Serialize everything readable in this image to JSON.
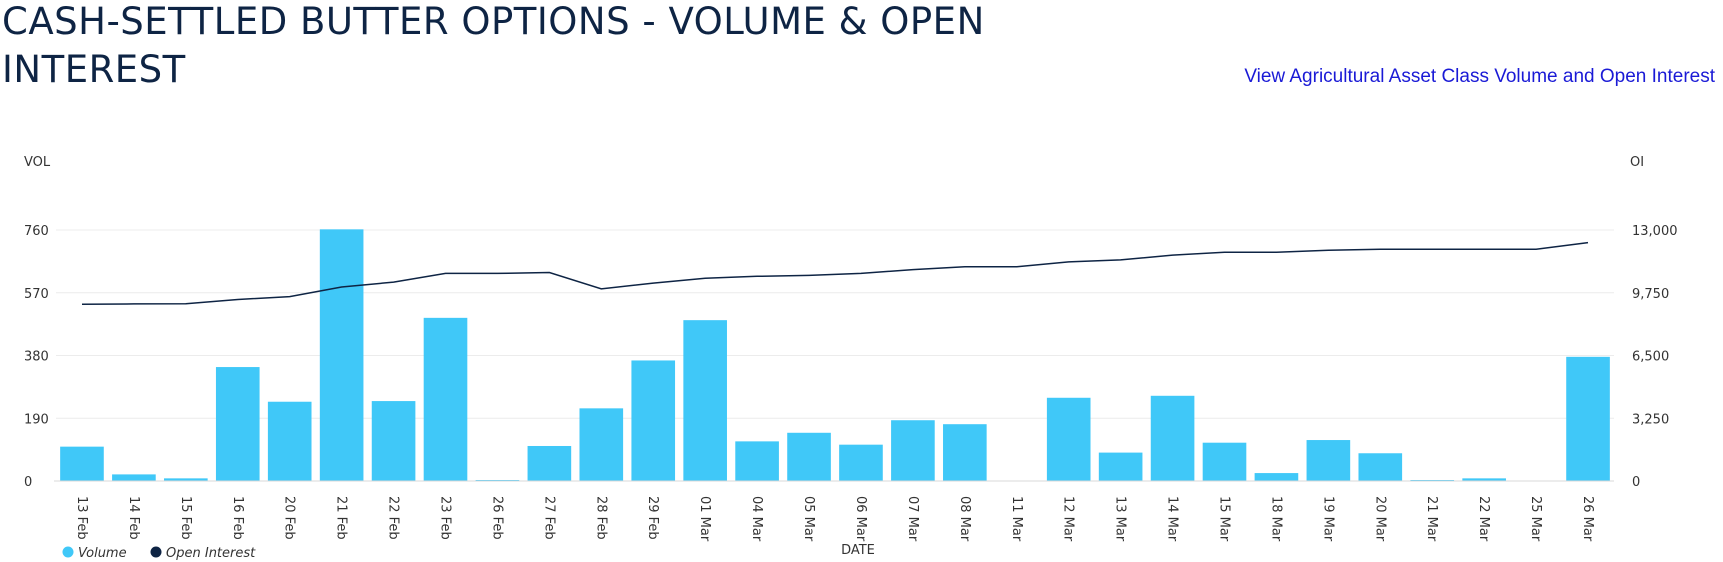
{
  "header": {
    "title": "CASH-SETTLED BUTTER OPTIONS - VOLUME & OPEN INTEREST",
    "link_text": "View Agricultural Asset Class Volume and Open Interest"
  },
  "colors": {
    "volume_bar": "#40c8f8",
    "oi_line": "#0e2444",
    "grid": "#ececec",
    "link": "#1a1ad6",
    "title": "#0e2444"
  },
  "chart_data": {
    "type": "bar",
    "title": "",
    "xlabel": "DATE",
    "ylabel": "VOL",
    "y2label": "OI",
    "categories": [
      "13 Feb",
      "14 Feb",
      "15 Feb",
      "16 Feb",
      "20 Feb",
      "21 Feb",
      "22 Feb",
      "23 Feb",
      "26 Feb",
      "27 Feb",
      "28 Feb",
      "29 Feb",
      "01 Mar",
      "04 Mar",
      "05 Mar",
      "06 Mar",
      "07 Mar",
      "08 Mar",
      "11 Mar",
      "12 Mar",
      "13 Mar",
      "14 Mar",
      "15 Mar",
      "18 Mar",
      "19 Mar",
      "20 Mar",
      "21 Mar",
      "22 Mar",
      "25 Mar",
      "26 Mar"
    ],
    "ylim": [
      0,
      760
    ],
    "yticks": [
      "0",
      "190",
      "380",
      "570",
      "760"
    ],
    "y2lim": [
      0,
      13000
    ],
    "y2ticks": [
      "0",
      "3,250",
      "6,500",
      "9,750",
      "13,000"
    ],
    "grid": true,
    "legend_position": "bottom-left",
    "series": [
      {
        "name": "Volume",
        "type": "bar",
        "axis": "left",
        "values": [
          104,
          20,
          8,
          345,
          240,
          762,
          242,
          494,
          2,
          106,
          220,
          365,
          487,
          120,
          146,
          110,
          184,
          172,
          0,
          252,
          86,
          258,
          116,
          24,
          124,
          84,
          2,
          8,
          0,
          376
        ]
      },
      {
        "name": "Open Interest",
        "type": "line",
        "axis": "right",
        "values": [
          9150,
          9170,
          9180,
          9400,
          9550,
          10050,
          10300,
          10750,
          10750,
          10800,
          9950,
          10250,
          10500,
          10600,
          10650,
          10750,
          10950,
          11100,
          11100,
          11350,
          11450,
          11700,
          11850,
          11850,
          11950,
          12000,
          12000,
          12000,
          12000,
          12350
        ]
      }
    ]
  }
}
